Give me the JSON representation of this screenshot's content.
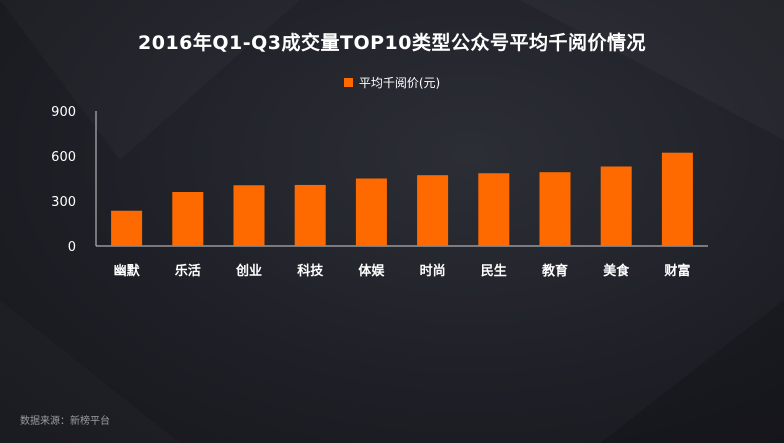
{
  "title": "2016年Q1-Q3成交量TOP10类型公众号平均千阅价情况",
  "source": "数据来源：新榜平台",
  "colors": {
    "bar": "#ff6a00",
    "axis": "#d0d0d0",
    "text": "#ffffff"
  },
  "chart_data": {
    "type": "bar",
    "title": "2016年Q1-Q3成交量TOP10类型公众号平均千阅价情况",
    "xlabel": "",
    "ylabel": "",
    "ylim": [
      0,
      900
    ],
    "yticks": [
      0,
      300,
      600,
      900
    ],
    "grid": false,
    "legend_position": "top-center",
    "categories": [
      "幽默",
      "乐活",
      "创业",
      "科技",
      "体娱",
      "时尚",
      "民生",
      "教育",
      "美食",
      "财富"
    ],
    "series": [
      {
        "name": "平均千阅价(元)",
        "values": [
          235,
          360,
          405,
          407,
          450,
          472,
          485,
          492,
          530,
          622
        ]
      }
    ]
  }
}
